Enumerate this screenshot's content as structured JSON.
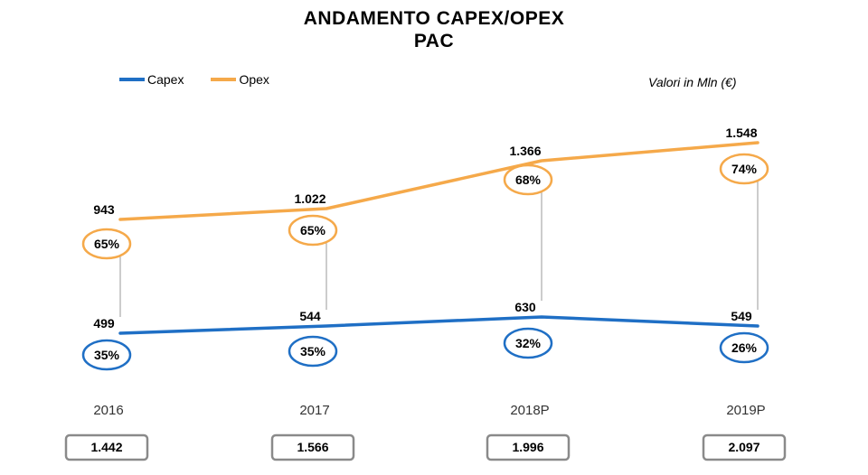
{
  "title": [
    "ANDAMENTO  CAPEX/OPEX",
    "PAC"
  ],
  "unit_note": "Valori in Mln (€)",
  "colors": {
    "capex": "#1f6fc5",
    "opex": "#f5a94a",
    "connector": "#9a9a9a",
    "total_border": "#8a8a8a"
  },
  "chart_data": {
    "type": "line",
    "categories": [
      "2016",
      "2017",
      "2018P",
      "2019P"
    ],
    "series": [
      {
        "name": "Capex",
        "values": [
          499,
          544,
          630,
          549
        ],
        "labels": [
          "499",
          "544",
          "630",
          "549"
        ],
        "shares": [
          "35%",
          "35%",
          "32%",
          "26%"
        ]
      },
      {
        "name": "Opex",
        "values": [
          943,
          1022,
          1366,
          1548
        ],
        "labels": [
          "943",
          "1.022",
          "1.366",
          "1.548"
        ],
        "shares": [
          "65%",
          "65%",
          "68%",
          "74%"
        ]
      }
    ],
    "totals": [
      "1.442",
      "1.566",
      "1.996",
      "2.097"
    ],
    "legend_position": "top-left",
    "grid": false
  }
}
